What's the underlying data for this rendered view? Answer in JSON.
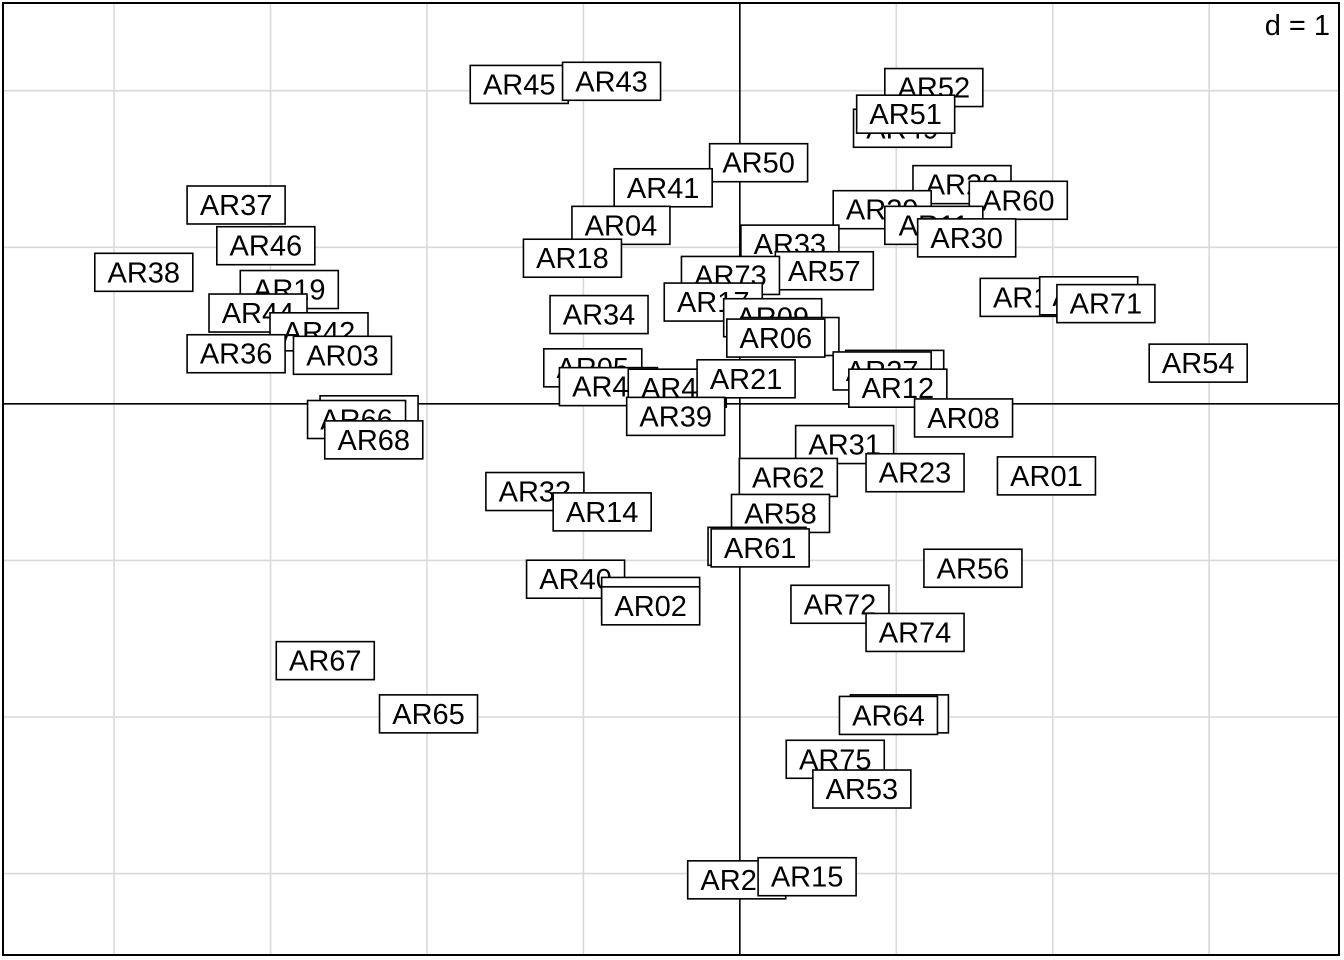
{
  "chart_data": {
    "type": "scatter",
    "title": "",
    "xlabel": "",
    "ylabel": "",
    "scale_label": "d = 1",
    "xlim": [
      -4.71,
      3.83
    ],
    "ylim": [
      -3.52,
      2.56
    ],
    "grid": true,
    "grid_step": 1,
    "origin_axes": true,
    "points": [
      {
        "label": "AR45",
        "x": -1.41,
        "y": 2.04
      },
      {
        "label": "AR43",
        "x": -0.82,
        "y": 2.06
      },
      {
        "label": "AR52",
        "x": 1.24,
        "y": 2.02
      },
      {
        "label": "AR49",
        "x": 1.04,
        "y": 1.76
      },
      {
        "label": "AR51",
        "x": 1.06,
        "y": 1.85
      },
      {
        "label": "AR50",
        "x": 0.12,
        "y": 1.54
      },
      {
        "label": "AR41",
        "x": -0.49,
        "y": 1.38
      },
      {
        "label": "AR28",
        "x": 1.42,
        "y": 1.4
      },
      {
        "label": "AR60",
        "x": 1.78,
        "y": 1.3
      },
      {
        "label": "AR29",
        "x": 0.91,
        "y": 1.24
      },
      {
        "label": "AR11",
        "x": 1.24,
        "y": 1.14
      },
      {
        "label": "AR30",
        "x": 1.45,
        "y": 1.06
      },
      {
        "label": "AR37",
        "x": -3.22,
        "y": 1.27
      },
      {
        "label": "AR46",
        "x": -3.03,
        "y": 1.01
      },
      {
        "label": "AR04",
        "x": -0.76,
        "y": 1.14
      },
      {
        "label": "AR18",
        "x": -1.07,
        "y": 0.93
      },
      {
        "label": "AR33",
        "x": 0.32,
        "y": 1.02
      },
      {
        "label": "AR57",
        "x": 0.54,
        "y": 0.85
      },
      {
        "label": "AR73",
        "x": -0.06,
        "y": 0.82
      },
      {
        "label": "AR38",
        "x": -3.81,
        "y": 0.84
      },
      {
        "label": "AR19",
        "x": -2.88,
        "y": 0.73
      },
      {
        "label": "AR13",
        "x": 1.85,
        "y": 0.68
      },
      {
        "label": "AR70",
        "x": 2.23,
        "y": 0.69
      },
      {
        "label": "AR71",
        "x": 2.34,
        "y": 0.64
      },
      {
        "label": "AR17",
        "x": -0.17,
        "y": 0.65
      },
      {
        "label": "AR09",
        "x": 0.21,
        "y": 0.55
      },
      {
        "label": "AR44",
        "x": -3.08,
        "y": 0.58
      },
      {
        "label": "AR34",
        "x": -0.9,
        "y": 0.57
      },
      {
        "label": "AR42",
        "x": -2.69,
        "y": 0.46
      },
      {
        "label": "AR59",
        "x": 0.32,
        "y": 0.43
      },
      {
        "label": "AR06",
        "x": 0.23,
        "y": 0.42
      },
      {
        "label": "AR36",
        "x": -3.22,
        "y": 0.32
      },
      {
        "label": "AR03",
        "x": -2.54,
        "y": 0.31
      },
      {
        "label": "AR25",
        "x": 0.99,
        "y": 0.22
      },
      {
        "label": "AR27",
        "x": 0.91,
        "y": 0.21
      },
      {
        "label": "AR54",
        "x": 2.93,
        "y": 0.26
      },
      {
        "label": "AR05",
        "x": -0.94,
        "y": 0.23
      },
      {
        "label": "AR48",
        "x": -0.84,
        "y": 0.11
      },
      {
        "label": "AR47",
        "x": -0.4,
        "y": 0.1
      },
      {
        "label": "AR21",
        "x": 0.04,
        "y": 0.16
      },
      {
        "label": "AR12",
        "x": 1.01,
        "y": 0.1
      },
      {
        "label": "AR39",
        "x": -0.41,
        "y": -0.08
      },
      {
        "label": "AR08",
        "x": 1.43,
        "y": -0.09
      },
      {
        "label": "AR16",
        "x": -2.37,
        "y": -0.07
      },
      {
        "label": "AR66",
        "x": -2.45,
        "y": -0.1
      },
      {
        "label": "AR68",
        "x": -2.34,
        "y": -0.23
      },
      {
        "label": "AR31",
        "x": 0.67,
        "y": -0.26
      },
      {
        "label": "AR23",
        "x": 1.12,
        "y": -0.44
      },
      {
        "label": "AR01",
        "x": 1.96,
        "y": -0.46
      },
      {
        "label": "AR62",
        "x": 0.31,
        "y": -0.47
      },
      {
        "label": "AR32",
        "x": -1.31,
        "y": -0.56
      },
      {
        "label": "AR14",
        "x": -0.88,
        "y": -0.69
      },
      {
        "label": "AR58",
        "x": 0.26,
        "y": -0.7
      },
      {
        "label": "AR63",
        "x": 0.11,
        "y": -0.91
      },
      {
        "label": "AR61",
        "x": 0.13,
        "y": -0.92
      },
      {
        "label": "AR56",
        "x": 1.49,
        "y": -1.05
      },
      {
        "label": "AR40",
        "x": -1.05,
        "y": -1.12
      },
      {
        "label": "AR24",
        "x": -0.57,
        "y": -1.23
      },
      {
        "label": "AR02",
        "x": -0.57,
        "y": -1.29
      },
      {
        "label": "AR72",
        "x": 0.64,
        "y": -1.28
      },
      {
        "label": "AR74",
        "x": 1.12,
        "y": -1.46
      },
      {
        "label": "AR67",
        "x": -2.65,
        "y": -1.64
      },
      {
        "label": "AR65",
        "x": -1.99,
        "y": -1.98
      },
      {
        "label": "AR69",
        "x": 1.02,
        "y": -1.98
      },
      {
        "label": "AR64",
        "x": 0.95,
        "y": -1.99
      },
      {
        "label": "AR75",
        "x": 0.61,
        "y": -2.27
      },
      {
        "label": "AR53",
        "x": 0.78,
        "y": -2.46
      },
      {
        "label": "AR20",
        "x": -0.02,
        "y": -3.04
      },
      {
        "label": "AR15",
        "x": 0.43,
        "y": -3.02
      }
    ]
  }
}
